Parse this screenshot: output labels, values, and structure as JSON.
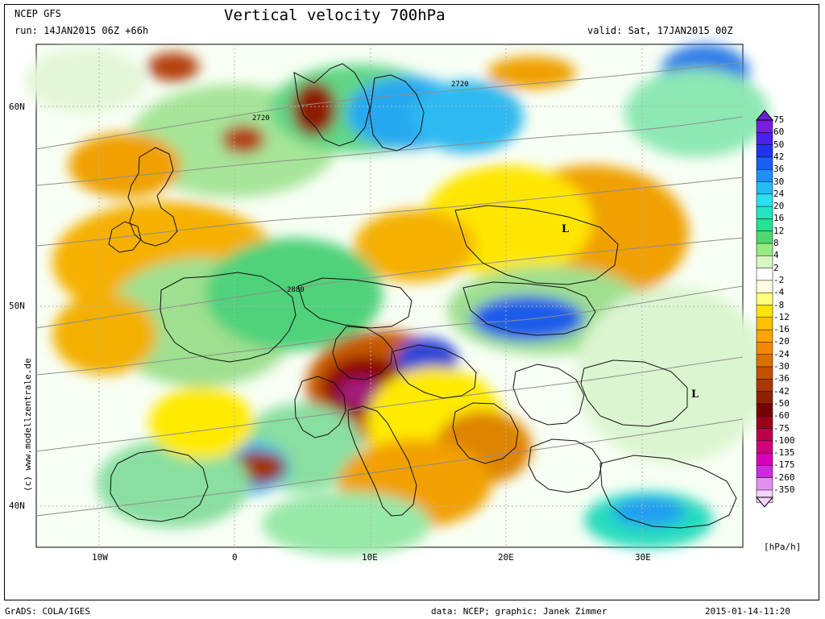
{
  "header": {
    "source": "NCEP GFS",
    "run": "run: 14JAN2015 06Z +66h",
    "title": "Vertical velocity 700hPa",
    "valid": "valid: Sat, 17JAN2015 00Z"
  },
  "map": {
    "lon_labels": [
      "10W",
      "0",
      "10E",
      "20E",
      "30E"
    ],
    "lat_labels": [
      "60N",
      "50N",
      "40N"
    ],
    "contour_labels": [
      "2720",
      "2720",
      "2880"
    ],
    "low_markers": [
      "L",
      "L"
    ],
    "colors": {
      "border": "#111111",
      "contour": "#8e8e8e",
      "grid": "#b3b3b3",
      "green_light": "#dff4d4",
      "green_mid": "#9ee08f",
      "green_dark": "#37c070",
      "blue_light": "#8ee9f0",
      "blue_mid": "#2b9bf0",
      "blue_dark": "#3145d6",
      "yellow": "#ffea00",
      "orange": "#f2a000",
      "brown": "#c65a00",
      "dark_red": "#8d0000",
      "magenta": "#a11a79"
    }
  },
  "legend": {
    "items": [
      {
        "label": "75",
        "color": "#7a1ddf"
      },
      {
        "label": "60",
        "color": "#4b20e8"
      },
      {
        "label": "50",
        "color": "#2034ec"
      },
      {
        "label": "42",
        "color": "#1760f0"
      },
      {
        "label": "36",
        "color": "#1d90f6"
      },
      {
        "label": "30",
        "color": "#22bdf6"
      },
      {
        "label": "24",
        "color": "#2de0f0"
      },
      {
        "label": "20",
        "color": "#22e6bf"
      },
      {
        "label": "16",
        "color": "#27df95"
      },
      {
        "label": "12",
        "color": "#4fd86d"
      },
      {
        "label": "8",
        "color": "#97ea80"
      },
      {
        "label": "4",
        "color": "#d8f7c4"
      },
      {
        "label": "2",
        "color": "#ffffff"
      },
      {
        "label": "-2",
        "color": "#fffde1"
      },
      {
        "label": "-4",
        "color": "#ffff7d"
      },
      {
        "label": "-8",
        "color": "#ffe500"
      },
      {
        "label": "-12",
        "color": "#ffc100"
      },
      {
        "label": "-16",
        "color": "#ffa300"
      },
      {
        "label": "-20",
        "color": "#f28900"
      },
      {
        "label": "-24",
        "color": "#db6f00"
      },
      {
        "label": "-30",
        "color": "#c25000"
      },
      {
        "label": "-36",
        "color": "#a93800"
      },
      {
        "label": "-42",
        "color": "#8f2100"
      },
      {
        "label": "-50",
        "color": "#770000"
      },
      {
        "label": "-60",
        "color": "#990019"
      },
      {
        "label": "-75",
        "color": "#bb0049"
      },
      {
        "label": "-100",
        "color": "#d20079"
      },
      {
        "label": "-135",
        "color": "#d500b5"
      },
      {
        "label": "-175",
        "color": "#ce2be0"
      },
      {
        "label": "-260",
        "color": "#e58ef1"
      },
      {
        "label": "-350",
        "color": "#f4d5fa"
      }
    ],
    "unit": "[hPa/h]"
  },
  "side_credit": "(c) www.modellzentrale.de",
  "footer": {
    "left": "GrADS: COLA/IGES",
    "center": "data: NCEP; graphic: Janek Zimmer",
    "right": "2015-01-14-11:20"
  }
}
